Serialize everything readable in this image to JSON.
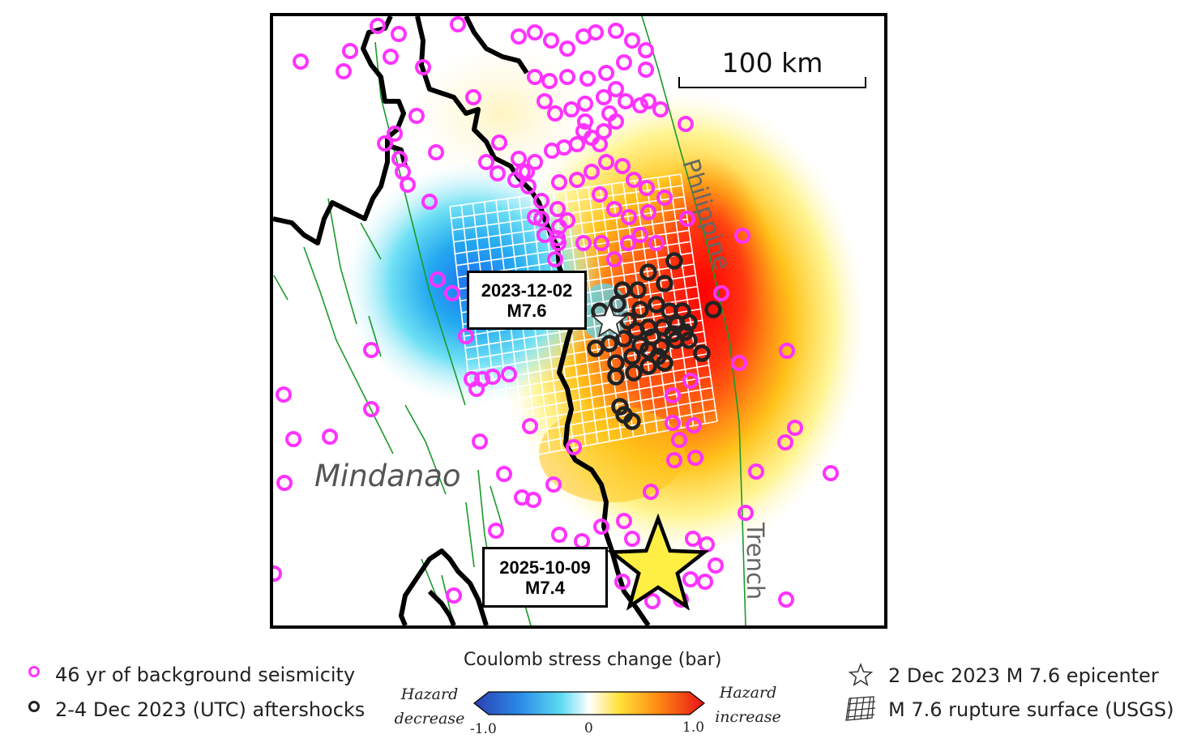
{
  "map": {
    "scale_label": "100 km",
    "region_label": "Mindanao",
    "trench_label_1": "Philippine",
    "trench_label_2": "Trench"
  },
  "callouts": {
    "quake_2023_date": "2023-12-02",
    "quake_2023_mag": "M7.6",
    "quake_2025_date": "2025-10-09",
    "quake_2025_mag": "M7.4"
  },
  "colors": {
    "background_seismicity": "#ff33ff",
    "aftershocks": "#222222",
    "faults": "#1a9a2a",
    "new_epicenter_star": "#ffee44",
    "stress_negative": "#2f5fd0",
    "stress_positive": "#e8121a"
  },
  "legend": {
    "background_seismicity": "46 yr of background seismicity",
    "aftershocks": "2-4 Dec 2023 (UTC) aftershocks",
    "colorbar_title": "Coulomb stress change (bar)",
    "hazard_decrease_1": "Hazard",
    "hazard_decrease_2": "decrease",
    "hazard_increase_1": "Hazard",
    "hazard_increase_2": "increase",
    "tick_min": "-1.0",
    "tick_mid": "0",
    "tick_max": "1.0",
    "epicenter": "2 Dec 2023 M 7.6 epicenter",
    "rupture": "M 7.6 rupture surface (USGS)"
  },
  "colorbar": {
    "min": -1.0,
    "max": 1.0
  }
}
